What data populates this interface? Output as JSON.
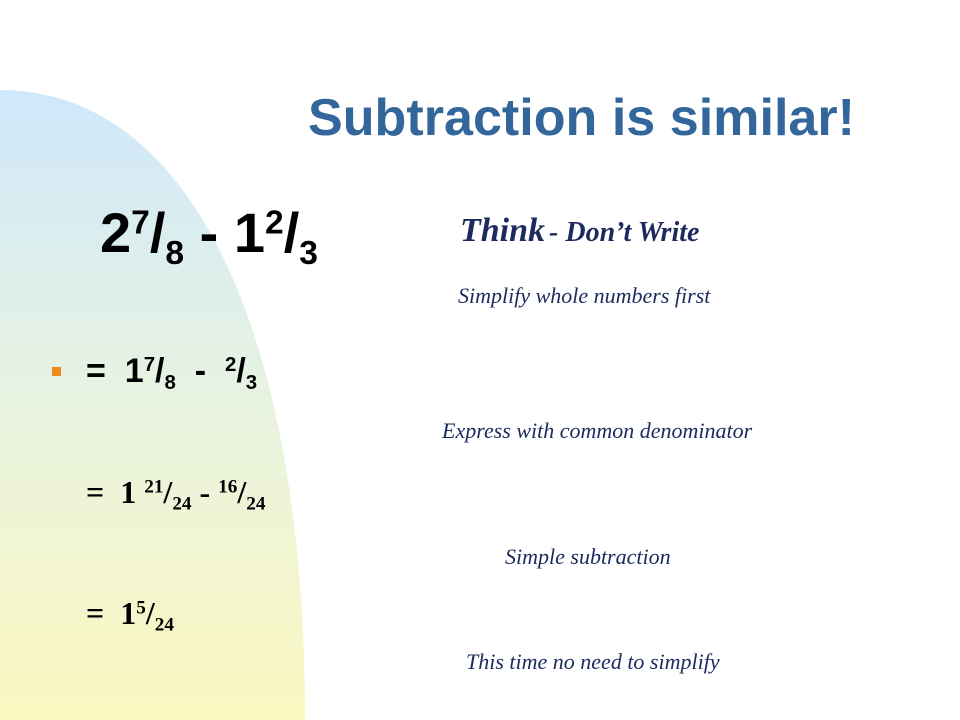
{
  "title": "Subtraction is similar!",
  "slash": "/",
  "problem": {
    "first": {
      "whole": "2",
      "num": "7",
      "den": "8"
    },
    "op": "-",
    "second": {
      "whole": "1",
      "num": "2",
      "den": "3"
    }
  },
  "hint": {
    "lead": "Think",
    "rest": "- Don’t Write"
  },
  "steps": [
    {
      "note": "Simplify whole numbers first"
    },
    {
      "eq": "=",
      "first": {
        "whole": "1",
        "num": "7",
        "den": "8"
      },
      "op": "-",
      "second": {
        "num": "2",
        "den": "3"
      },
      "note": "Express with common denominator"
    },
    {
      "eq": "=",
      "first": {
        "whole": "1",
        "num": "21",
        "den": "24"
      },
      "op": "-",
      "second": {
        "num": "16",
        "den": "24"
      },
      "note": "Simple subtraction"
    },
    {
      "eq": "=",
      "first": {
        "whole": "1",
        "num": "5",
        "den": "24"
      },
      "note": "This time no need to simplify"
    }
  ]
}
